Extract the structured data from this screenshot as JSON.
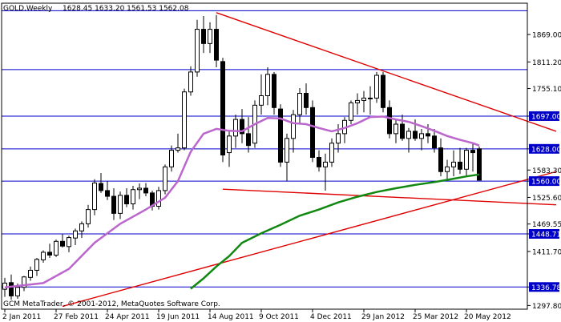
{
  "header": {
    "symbol_tf": "GOLD,Weekly",
    "ohlc": "1628.45 1633.20 1561.53 1562.08"
  },
  "footer": {
    "copyright": "GCM MetaTrader, © 2001-2012, MetaQuotes Software Corp."
  },
  "chart_data": {
    "type": "candlestick",
    "title": "GOLD,Weekly",
    "x_tick_labels": [
      "2 Jan 2011",
      "27 Feb 2011",
      "24 Apr 2011",
      "19 Jun 2011",
      "14 Aug 2011",
      "9 Oct 2011",
      "4 Dec 2011",
      "29 Jan 2012",
      "25 Mar 2012",
      "20 May 2012"
    ],
    "y_tick_labels": [
      1869.0,
      1811.2,
      1755.1,
      1697.0,
      1628.0,
      1583.3,
      1560.0,
      1525.6,
      1469.55,
      1448.71,
      1411.7,
      1336.78,
      1297.8
    ],
    "ylim": [
      1290,
      1935
    ],
    "grid": false,
    "candles": [
      [
        1332,
        1356,
        1316,
        1345
      ],
      [
        1346,
        1363,
        1310,
        1318
      ],
      [
        1318,
        1344,
        1312,
        1336
      ],
      [
        1336,
        1360,
        1328,
        1358
      ],
      [
        1357,
        1380,
        1350,
        1372
      ],
      [
        1372,
        1398,
        1360,
        1395
      ],
      [
        1394,
        1414,
        1388,
        1410
      ],
      [
        1410,
        1428,
        1398,
        1404
      ],
      [
        1404,
        1437,
        1400,
        1433
      ],
      [
        1433,
        1448,
        1420,
        1423
      ],
      [
        1422,
        1445,
        1410,
        1441
      ],
      [
        1440,
        1460,
        1425,
        1455
      ],
      [
        1455,
        1475,
        1440,
        1470
      ],
      [
        1470,
        1510,
        1462,
        1500
      ],
      [
        1500,
        1564,
        1488,
        1556
      ],
      [
        1555,
        1577,
        1535,
        1540
      ],
      [
        1540,
        1560,
        1520,
        1528
      ],
      [
        1528,
        1545,
        1478,
        1492
      ],
      [
        1492,
        1538,
        1480,
        1530
      ],
      [
        1530,
        1545,
        1505,
        1512
      ],
      [
        1512,
        1550,
        1500,
        1542
      ],
      [
        1542,
        1555,
        1522,
        1545
      ],
      [
        1545,
        1556,
        1528,
        1535
      ],
      [
        1535,
        1540,
        1498,
        1507
      ],
      [
        1507,
        1548,
        1500,
        1540
      ],
      [
        1540,
        1595,
        1532,
        1590
      ],
      [
        1590,
        1635,
        1580,
        1625
      ],
      [
        1625,
        1660,
        1620,
        1630
      ],
      [
        1630,
        1755,
        1625,
        1748
      ],
      [
        1748,
        1802,
        1740,
        1790
      ],
      [
        1790,
        1900,
        1780,
        1880
      ],
      [
        1880,
        1908,
        1830,
        1850
      ],
      [
        1850,
        1895,
        1830,
        1880
      ],
      [
        1880,
        1910,
        1800,
        1815
      ],
      [
        1812,
        1820,
        1600,
        1615
      ],
      [
        1620,
        1665,
        1590,
        1655
      ],
      [
        1655,
        1700,
        1630,
        1690
      ],
      [
        1690,
        1712,
        1640,
        1660
      ],
      [
        1660,
        1695,
        1620,
        1635
      ],
      [
        1640,
        1730,
        1630,
        1720
      ],
      [
        1720,
        1785,
        1700,
        1740
      ],
      [
        1740,
        1800,
        1720,
        1785
      ],
      [
        1785,
        1790,
        1700,
        1715
      ],
      [
        1712,
        1722,
        1590,
        1600
      ],
      [
        1600,
        1660,
        1560,
        1650
      ],
      [
        1650,
        1710,
        1620,
        1700
      ],
      [
        1700,
        1756,
        1680,
        1745
      ],
      [
        1745,
        1766,
        1700,
        1715
      ],
      [
        1715,
        1730,
        1600,
        1610
      ],
      [
        1610,
        1625,
        1580,
        1590
      ],
      [
        1590,
        1618,
        1540,
        1600
      ],
      [
        1600,
        1650,
        1590,
        1640
      ],
      [
        1640,
        1680,
        1620,
        1660
      ],
      [
        1660,
        1695,
        1640,
        1688
      ],
      [
        1688,
        1730,
        1680,
        1725
      ],
      [
        1725,
        1745,
        1700,
        1730
      ],
      [
        1730,
        1750,
        1705,
        1735
      ],
      [
        1735,
        1760,
        1700,
        1735
      ],
      [
        1735,
        1790,
        1725,
        1783
      ],
      [
        1783,
        1790,
        1705,
        1715
      ],
      [
        1715,
        1730,
        1650,
        1660
      ],
      [
        1660,
        1690,
        1640,
        1680
      ],
      [
        1680,
        1700,
        1645,
        1650
      ],
      [
        1650,
        1672,
        1620,
        1665
      ],
      [
        1665,
        1690,
        1645,
        1650
      ],
      [
        1650,
        1670,
        1625,
        1660
      ],
      [
        1660,
        1680,
        1640,
        1655
      ],
      [
        1655,
        1670,
        1620,
        1630
      ],
      [
        1630,
        1650,
        1570,
        1580
      ],
      [
        1580,
        1605,
        1560,
        1590
      ],
      [
        1590,
        1625,
        1570,
        1600
      ],
      [
        1600,
        1630,
        1575,
        1585
      ],
      [
        1585,
        1630,
        1570,
        1625
      ],
      [
        1625,
        1640,
        1580,
        1620
      ],
      [
        1628,
        1633,
        1562,
        1562
      ]
    ],
    "ma_purple": [
      [
        0,
        1336
      ],
      [
        6,
        1345
      ],
      [
        10,
        1375
      ],
      [
        14,
        1430
      ],
      [
        18,
        1470
      ],
      [
        22,
        1500
      ],
      [
        25,
        1525
      ],
      [
        27,
        1560
      ],
      [
        29,
        1622
      ],
      [
        31,
        1660
      ],
      [
        33,
        1670
      ],
      [
        35,
        1666
      ],
      [
        37,
        1665
      ],
      [
        39,
        1680
      ],
      [
        41,
        1693
      ],
      [
        43,
        1692
      ],
      [
        45,
        1682
      ],
      [
        47,
        1680
      ],
      [
        49,
        1672
      ],
      [
        51,
        1665
      ],
      [
        53,
        1672
      ],
      [
        55,
        1682
      ],
      [
        57,
        1695
      ],
      [
        59,
        1696
      ],
      [
        61,
        1690
      ],
      [
        63,
        1685
      ],
      [
        65,
        1676
      ],
      [
        67,
        1666
      ],
      [
        69,
        1655
      ],
      [
        71,
        1647
      ],
      [
        73,
        1640
      ],
      [
        74,
        1635
      ]
    ],
    "ma_green": [
      [
        29,
        1333
      ],
      [
        31,
        1355
      ],
      [
        33,
        1380
      ],
      [
        35,
        1402
      ],
      [
        37,
        1430
      ],
      [
        40,
        1450
      ],
      [
        43,
        1468
      ],
      [
        46,
        1487
      ],
      [
        49,
        1500
      ],
      [
        52,
        1515
      ],
      [
        55,
        1527
      ],
      [
        58,
        1537
      ],
      [
        61,
        1545
      ],
      [
        64,
        1552
      ],
      [
        67,
        1558
      ],
      [
        70,
        1565
      ],
      [
        72,
        1570
      ],
      [
        74,
        1574
      ]
    ],
    "trendlines": [
      {
        "from": [
          33,
          1915
        ],
        "to": [
          86,
          1665
        ]
      },
      {
        "from": [
          34,
          1543
        ],
        "to": [
          86,
          1510
        ]
      },
      {
        "from": [
          9,
          1296
        ],
        "to": [
          86,
          1580
        ]
      }
    ],
    "horizontal_levels": [
      1919.15,
      1795.0,
      1697.0,
      1628.0,
      1560.0,
      1448.71,
      1336.78
    ],
    "highlighted_levels": [
      "1919.15",
      "1795.00",
      "1697.00",
      "1628.00",
      "1560.00",
      "1448.71",
      "1336.78"
    ]
  },
  "colors": {
    "bull": "#ffffff",
    "bear": "#000000",
    "wick": "#000000",
    "level": "#0000c8",
    "level_box": "#0000c8",
    "trend": "#e00000",
    "ma_purple": "#bb66cc",
    "ma_green": "#118811",
    "axis": "#000000"
  }
}
